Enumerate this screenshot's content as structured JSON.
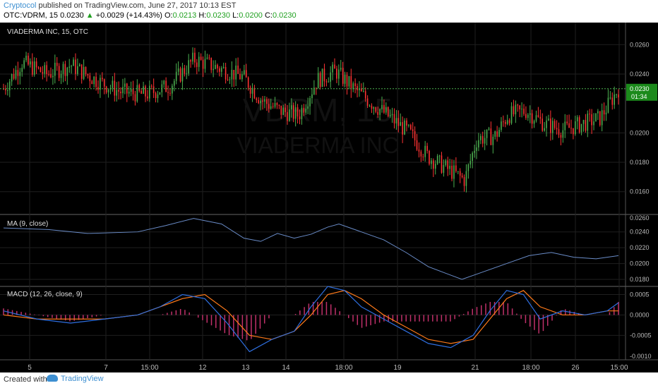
{
  "header": {
    "author": "Cryptocol",
    "published": "published on TradingView.com, June 27, 2017 10:13 EST",
    "symbol": "OTC:VDRM, 15",
    "last": "0.0230",
    "change": "+0.0029 (+14.43%)",
    "o_label": "O:",
    "o": "0.0213",
    "h_label": "H:",
    "h": "0.0230",
    "l_label": "L:",
    "l": "0.0200",
    "c_label": "C:",
    "c": "0.0230"
  },
  "footer": {
    "created": "Created with",
    "brand": "TradingView"
  },
  "colors": {
    "up": "#4caf50",
    "down": "#ff3333",
    "bg": "#000000",
    "ma": "#6a8cc8",
    "macd": "#2f6fe0",
    "signal": "#ff7a1a",
    "hist": "#c0306a",
    "last_line": "#4caf50"
  },
  "chart_data": [
    {
      "type": "candlestick",
      "title": "VIADERMA INC, 15, OTC",
      "watermark_symbol": "VDRM, 15",
      "watermark_name": "VIADERMA INC",
      "ylim": [
        0.0145,
        0.0275
      ],
      "yticks": [
        "0.0260",
        "0.0240",
        "0.0200",
        "0.0180",
        "0.0160"
      ],
      "last_price_label": "0.0230",
      "countdown_label": "01:34",
      "close_points": [
        [
          0,
          0.023
        ],
        [
          0.03,
          0.0248
        ],
        [
          0.07,
          0.024
        ],
        [
          0.11,
          0.0246
        ],
        [
          0.15,
          0.0236
        ],
        [
          0.19,
          0.0228
        ],
        [
          0.23,
          0.0226
        ],
        [
          0.27,
          0.0232
        ],
        [
          0.31,
          0.025
        ],
        [
          0.35,
          0.0244
        ],
        [
          0.39,
          0.0238
        ],
        [
          0.42,
          0.0222
        ],
        [
          0.45,
          0.0215
        ],
        [
          0.48,
          0.0212
        ],
        [
          0.51,
          0.0236
        ],
        [
          0.54,
          0.0242
        ],
        [
          0.57,
          0.023
        ],
        [
          0.6,
          0.022
        ],
        [
          0.63,
          0.021
        ],
        [
          0.66,
          0.02
        ],
        [
          0.69,
          0.0184
        ],
        [
          0.72,
          0.0176
        ],
        [
          0.75,
          0.0168
        ],
        [
          0.77,
          0.0196
        ],
        [
          0.8,
          0.0198
        ],
        [
          0.82,
          0.0212
        ],
        [
          0.85,
          0.0215
        ],
        [
          0.88,
          0.0206
        ],
        [
          0.91,
          0.0202
        ],
        [
          0.94,
          0.0206
        ],
        [
          0.97,
          0.021
        ],
        [
          1.0,
          0.023
        ]
      ]
    },
    {
      "type": "line",
      "title": "MA (9, close)",
      "ylim": [
        0.0172,
        0.0262
      ],
      "yticks": [
        "0.0240",
        "0.0220",
        "0.0200",
        "0.0180"
      ],
      "y_partial_top": "0.0260",
      "points": [
        [
          0,
          0.0245
        ],
        [
          0.08,
          0.0243
        ],
        [
          0.15,
          0.0238
        ],
        [
          0.24,
          0.024
        ],
        [
          0.29,
          0.0248
        ],
        [
          0.34,
          0.0257
        ],
        [
          0.39,
          0.025
        ],
        [
          0.43,
          0.0232
        ],
        [
          0.46,
          0.0228
        ],
        [
          0.49,
          0.0238
        ],
        [
          0.52,
          0.0232
        ],
        [
          0.55,
          0.0237
        ],
        [
          0.58,
          0.0246
        ],
        [
          0.6,
          0.025
        ],
        [
          0.64,
          0.024
        ],
        [
          0.68,
          0.023
        ],
        [
          0.72,
          0.0214
        ],
        [
          0.76,
          0.0196
        ],
        [
          0.79,
          0.0188
        ],
        [
          0.82,
          0.018
        ],
        [
          0.86,
          0.019
        ],
        [
          0.9,
          0.02
        ],
        [
          0.94,
          0.021
        ],
        [
          0.98,
          0.0214
        ],
        [
          1.02,
          0.0208
        ],
        [
          1.06,
          0.0206
        ],
        [
          1.1,
          0.021
        ]
      ]
    },
    {
      "type": "line",
      "title": "MACD (12, 26, close, 9)",
      "ylim": [
        -0.0011,
        0.0007
      ],
      "yticks": [
        "0.0005",
        "0.0000",
        "-0.0005"
      ],
      "y_partial_bottom": "-0.0010",
      "series": [
        "MACD",
        "Signal",
        "Histogram"
      ],
      "macd_points": [
        [
          0,
          0.0001
        ],
        [
          0.06,
          -0.0001
        ],
        [
          0.12,
          -0.0002
        ],
        [
          0.18,
          -0.0001
        ],
        [
          0.24,
          0.0
        ],
        [
          0.28,
          0.0002
        ],
        [
          0.32,
          0.0005
        ],
        [
          0.36,
          0.0004
        ],
        [
          0.4,
          -0.0002
        ],
        [
          0.44,
          -0.0009
        ],
        [
          0.48,
          -0.0006
        ],
        [
          0.52,
          -0.0004
        ],
        [
          0.55,
          0.0002
        ],
        [
          0.58,
          0.0007
        ],
        [
          0.61,
          0.0006
        ],
        [
          0.64,
          0.0002
        ],
        [
          0.68,
          -0.0001
        ],
        [
          0.72,
          -0.0004
        ],
        [
          0.76,
          -0.0007
        ],
        [
          0.8,
          -0.0008
        ],
        [
          0.84,
          -0.0005
        ],
        [
          0.87,
          0.0001
        ],
        [
          0.9,
          0.0006
        ],
        [
          0.93,
          0.0005
        ],
        [
          0.96,
          -0.0001
        ],
        [
          1.0,
          0.0001
        ],
        [
          1.04,
          0.0
        ],
        [
          1.08,
          0.0001
        ],
        [
          1.1,
          0.0003
        ]
      ],
      "signal_points": [
        [
          0,
          0.0
        ],
        [
          0.06,
          -0.0001
        ],
        [
          0.12,
          -0.0001
        ],
        [
          0.18,
          -0.0001
        ],
        [
          0.24,
          0.0
        ],
        [
          0.28,
          0.0002
        ],
        [
          0.32,
          0.0004
        ],
        [
          0.36,
          0.0005
        ],
        [
          0.4,
          0.0001
        ],
        [
          0.44,
          -0.0005
        ],
        [
          0.48,
          -0.0006
        ],
        [
          0.52,
          -0.0004
        ],
        [
          0.55,
          0.0
        ],
        [
          0.58,
          0.0005
        ],
        [
          0.61,
          0.0006
        ],
        [
          0.64,
          0.0004
        ],
        [
          0.68,
          0.0
        ],
        [
          0.72,
          -0.0003
        ],
        [
          0.76,
          -0.0006
        ],
        [
          0.8,
          -0.0007
        ],
        [
          0.84,
          -0.0006
        ],
        [
          0.87,
          -0.0001
        ],
        [
          0.9,
          0.0004
        ],
        [
          0.93,
          0.0006
        ],
        [
          0.96,
          0.0002
        ],
        [
          1.0,
          0.0
        ],
        [
          1.04,
          0.0
        ],
        [
          1.08,
          0.0001
        ],
        [
          1.1,
          0.0001
        ]
      ]
    }
  ],
  "x_axis": {
    "ticks": [
      "5",
      "7",
      "15:00",
      "12",
      "13",
      "14",
      "18:00",
      "19",
      "21",
      "18:00",
      "26",
      "15:00"
    ]
  }
}
